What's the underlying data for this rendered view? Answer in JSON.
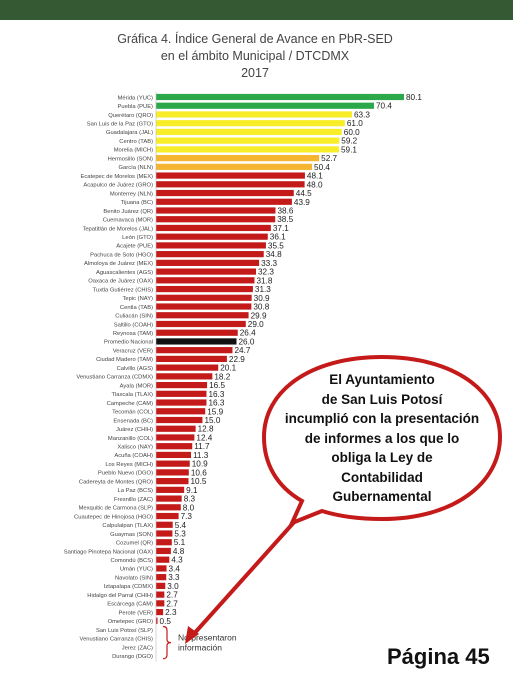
{
  "header": {
    "band_color": "#355a33"
  },
  "chart_data": {
    "type": "bar",
    "orientation": "horizontal",
    "title": "Gráfica 4. Índice General de Avance en PbR-SED",
    "subtitle": "en el ámbito Municipal / DTCDMX",
    "year": "2017",
    "categories": [
      "Mérida (YUC)",
      "Puebla (PUE)",
      "Querétaro (QRO)",
      "San Luis de la Paz (GTO)",
      "Guadalajara (JAL)",
      "Centro (TAB)",
      "Morelia (MICH)",
      "Hermosillo (SON)",
      "García (NLN)",
      "Ecatepec de Morelos (MEX)",
      "Acapulco de Juárez (GRO)",
      "Monterrey (NLN)",
      "Tijuana (BC)",
      "Benito Juárez (QR)",
      "Cuernavaca (MOR)",
      "Tepatitlán de Morelos (JAL)",
      "León (GTO)",
      "Acajete (PUE)",
      "Pachuca de Soto (HGO)",
      "Almoloya de Juárez (MEX)",
      "Aguascalientes (AGS)",
      "Oaxaca de Juárez (OAX)",
      "Tuxtla Gutiérrez (CHIS)",
      "Tepic (NAY)",
      "Centla (TAB)",
      "Culiacán (SIN)",
      "Saltillo (COAH)",
      "Reynosa (TAM)",
      "Promedio Nacional",
      "Veracruz (VER)",
      "Ciudad Madero (TAM)",
      "Calvillo (AGS)",
      "Venustiano Carranza (CDMX)",
      "Ayala (MOR)",
      "Tlaxcala (TLAX)",
      "Campeche (CAM)",
      "Tecomán (COL)",
      "Ensenada (BC)",
      "Juárez (CHIH)",
      "Manzanillo (COL)",
      "Xalisco (NAY)",
      "Acuña (COAH)",
      "Los Reyes (MICH)",
      "Pueblo Nuevo (DGO)",
      "Cadereyta de Montes (QRO)",
      "La Paz (BCS)",
      "Fresnillo (ZAC)",
      "Mexquitic de Carmona (SLP)",
      "Cuautepec de Hinojosa (HGO)",
      "Calpulalpan (TLAX)",
      "Guaymas (SON)",
      "Cozumel (QR)",
      "Santiago Pinotepa Nacional (OAX)",
      "Comondú (BCS)",
      "Umán (YUC)",
      "Navolato (SIN)",
      "Iztapalapa (CDMX)",
      "Hidalgo del Parral (CHIH)",
      "Escárcega (CAM)",
      "Perote (VER)",
      "Ometepec (GRO)",
      "San Luis Potosí (SLP)",
      "Venustiano Carranza (CHIS)",
      "Jerez (ZAC)",
      "Durango (DGO)"
    ],
    "values": [
      80.1,
      70.4,
      63.3,
      61.0,
      60.0,
      59.2,
      59.1,
      52.7,
      50.4,
      48.1,
      48.0,
      44.5,
      43.9,
      38.6,
      38.5,
      37.1,
      36.1,
      35.5,
      34.8,
      33.3,
      32.3,
      31.8,
      31.3,
      30.9,
      30.8,
      29.9,
      29.0,
      26.4,
      26.0,
      24.7,
      22.9,
      20.1,
      18.2,
      16.5,
      16.3,
      16.3,
      15.9,
      15.0,
      12.8,
      12.4,
      11.7,
      11.3,
      10.9,
      10.6,
      10.5,
      9.1,
      8.3,
      8.0,
      7.3,
      5.4,
      5.3,
      5.1,
      4.8,
      4.3,
      3.4,
      3.3,
      3.0,
      2.7,
      2.7,
      2.3,
      0.5,
      null,
      null,
      null,
      null
    ],
    "value_labels": [
      "80.1",
      "70.4",
      "63.3",
      "61.0",
      "60.0",
      "59.2",
      "59.1",
      "52.7",
      "50.4",
      "48.1",
      "48.0",
      "44.5",
      "43.9",
      "38.6",
      "38.5",
      "37.1",
      "36.1",
      "35.5",
      "34.8",
      "33.3",
      "32.3",
      "31.8",
      "31.3",
      "30.9",
      "30.8",
      "29.9",
      "29.0",
      "26.4",
      "26.0",
      "24.7",
      "22.9",
      "20.1",
      "18.2",
      "16.5",
      "16.3",
      "16.3",
      "15.9",
      "15.0",
      "12.8",
      "12.4",
      "11.7",
      "11.3",
      "10.9",
      "10.6",
      "10.5",
      "9.1",
      "8.3",
      "8.0",
      "7.3",
      "5.4",
      "5.3",
      "5.1",
      "4.8",
      "4.3",
      "3.4",
      "3.3",
      "3.0",
      "2.7",
      "2.7",
      "2.3",
      "0.5",
      "",
      "",
      "",
      ""
    ],
    "colors": {
      "green": "#2aa84a",
      "yellow": "#f7ee29",
      "orange": "#f6b530",
      "red": "#c41a1a",
      "national": "#111111"
    },
    "no_report_label": "No presentaron información",
    "xlim": [
      0,
      85
    ]
  },
  "callout": {
    "lines": [
      "El Ayuntamiento",
      "de San Luis Potosí",
      "incumplió con la presentación",
      "de informes a los que lo",
      "obliga la Ley de",
      "Contabilidad",
      "Gubernamental"
    ]
  },
  "page_label": "Página 45"
}
